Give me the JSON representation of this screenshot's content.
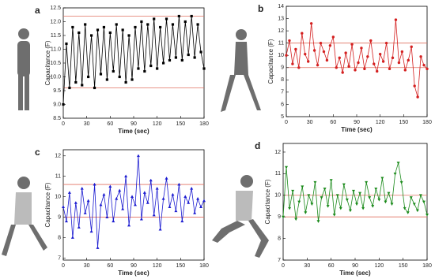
{
  "chart_data": [
    {
      "type": "line",
      "panel_label": "a",
      "ylabel": "Capacitance (F)",
      "xlabel": "Time (sec)",
      "color": "#000000",
      "marker": "square",
      "hlines": [
        12.2,
        9.6
      ],
      "hline_color": "#e07060",
      "xlim": [
        0,
        180
      ],
      "xticks": [
        0,
        30,
        60,
        90,
        120,
        150,
        180
      ],
      "ylim": [
        8.5,
        12.5
      ],
      "yticks": [
        8.5,
        {
          "value": 9,
          "label": "9.0"
        },
        9.5,
        {
          "value": 10,
          "label": "10.0"
        },
        10.5,
        {
          "value": 11,
          "label": "11.0"
        },
        11.5,
        {
          "value": 12,
          "label": "12.0"
        },
        12.5
      ],
      "x": [
        0,
        4,
        8,
        12,
        16,
        20,
        24,
        28,
        32,
        36,
        40,
        44,
        48,
        52,
        56,
        60,
        64,
        68,
        72,
        76,
        80,
        84,
        88,
        92,
        96,
        100,
        104,
        108,
        112,
        116,
        120,
        124,
        128,
        132,
        136,
        140,
        144,
        148,
        152,
        156,
        160,
        164,
        168,
        172,
        176,
        180
      ],
      "values": [
        9.0,
        11.2,
        9.6,
        11.8,
        9.8,
        11.6,
        9.7,
        11.9,
        10.0,
        11.5,
        9.6,
        11.7,
        10.1,
        11.8,
        9.9,
        11.6,
        10.2,
        11.9,
        10.0,
        11.7,
        9.8,
        11.5,
        9.9,
        11.8,
        10.3,
        12.0,
        10.2,
        11.9,
        10.4,
        12.1,
        10.3,
        11.8,
        10.5,
        12.1,
        10.6,
        11.9,
        10.7,
        12.2,
        10.6,
        12.0,
        10.8,
        12.2,
        10.7,
        11.9,
        10.9,
        10.3
      ]
    },
    {
      "type": "line",
      "panel_label": "b",
      "ylabel": "Capacitance (F)",
      "xlabel": "Time (sec)",
      "color": "#d42020",
      "marker": "circle",
      "hlines": [
        11,
        9
      ],
      "hline_color": "#e07060",
      "xlim": [
        0,
        180
      ],
      "xticks": [
        0,
        30,
        60,
        90,
        120,
        150,
        180
      ],
      "ylim": [
        5,
        14
      ],
      "yticks": [
        5,
        6,
        7,
        8,
        9,
        10,
        11,
        12,
        13,
        14
      ],
      "x": [
        0,
        4,
        8,
        12,
        16,
        20,
        24,
        28,
        32,
        36,
        40,
        44,
        48,
        52,
        56,
        60,
        64,
        68,
        72,
        76,
        80,
        84,
        88,
        92,
        96,
        100,
        104,
        108,
        112,
        116,
        120,
        124,
        128,
        132,
        136,
        140,
        144,
        148,
        152,
        156,
        160,
        164,
        168,
        172,
        176,
        180
      ],
      "values": [
        10.0,
        11.2,
        9.3,
        10.5,
        9.0,
        11.8,
        10.1,
        9.5,
        12.6,
        10.4,
        9.2,
        11.0,
        10.3,
        9.6,
        10.8,
        11.5,
        9.0,
        9.8,
        8.6,
        10.2,
        9.1,
        10.9,
        8.8,
        9.4,
        10.6,
        8.9,
        9.9,
        11.2,
        9.3,
        8.7,
        10.1,
        9.5,
        11.0,
        8.9,
        9.8,
        12.9,
        9.4,
        10.3,
        8.8,
        9.6,
        10.7,
        7.5,
        6.6,
        9.9,
        9.2,
        8.9
      ]
    },
    {
      "type": "line",
      "panel_label": "c",
      "ylabel": "Capacitance (F)",
      "xlabel": "Time (sec)",
      "color": "#1a1ad0",
      "marker": "triangle-up",
      "hlines": [
        10.6,
        9
      ],
      "hline_color": "#e07060",
      "xlim": [
        0,
        180
      ],
      "xticks": [
        0,
        30,
        60,
        90,
        120,
        150,
        180
      ],
      "ylim": [
        6.9,
        12.3
      ],
      "yticks": [
        7,
        8,
        9,
        10,
        11,
        12
      ],
      "x": [
        0,
        4,
        8,
        12,
        16,
        20,
        24,
        28,
        32,
        36,
        40,
        44,
        48,
        52,
        56,
        60,
        64,
        68,
        72,
        76,
        80,
        84,
        88,
        92,
        96,
        100,
        104,
        108,
        112,
        116,
        120,
        124,
        128,
        132,
        136,
        140,
        144,
        148,
        152,
        156,
        160,
        164,
        168,
        172,
        176,
        180
      ],
      "values": [
        9.5,
        8.8,
        10.2,
        8.0,
        9.7,
        8.5,
        10.4,
        9.2,
        9.8,
        8.3,
        10.6,
        7.5,
        9.6,
        10.1,
        9.0,
        10.5,
        8.8,
        9.9,
        10.3,
        9.4,
        11.0,
        8.6,
        10.0,
        9.6,
        12.0,
        8.9,
        10.2,
        9.7,
        10.8,
        9.1,
        10.4,
        8.4,
        9.9,
        10.9,
        9.5,
        10.1,
        9.3,
        10.6,
        8.8,
        10.0,
        9.7,
        10.4,
        9.2,
        9.9,
        9.5,
        9.8
      ]
    },
    {
      "type": "line",
      "panel_label": "d",
      "ylabel": "Capacitance (F)",
      "xlabel": "Time (sec)",
      "color": "#1a8a1a",
      "marker": "triangle-down",
      "hlines": [
        10,
        9
      ],
      "hline_color": "#e07060",
      "xlim": [
        0,
        180
      ],
      "xticks": [
        0,
        30,
        60,
        90,
        120,
        150,
        180
      ],
      "ylim": [
        7,
        12.4
      ],
      "yticks": [
        7,
        8,
        9,
        10,
        11,
        12
      ],
      "x": [
        0,
        4,
        8,
        12,
        16,
        20,
        24,
        28,
        32,
        36,
        40,
        44,
        48,
        52,
        56,
        60,
        64,
        68,
        72,
        76,
        80,
        84,
        88,
        92,
        96,
        100,
        104,
        108,
        112,
        116,
        120,
        124,
        128,
        132,
        136,
        140,
        144,
        148,
        152,
        156,
        160,
        164,
        168,
        172,
        176,
        180
      ],
      "values": [
        9.0,
        11.3,
        9.4,
        10.2,
        8.9,
        9.7,
        10.4,
        9.2,
        10.0,
        9.6,
        10.6,
        8.8,
        9.9,
        10.3,
        9.5,
        10.7,
        9.1,
        10.0,
        9.4,
        10.5,
        9.8,
        9.3,
        10.2,
        9.6,
        10.1,
        9.4,
        10.6,
        9.9,
        9.5,
        10.3,
        9.8,
        10.8,
        9.7,
        10.1,
        9.6,
        11.0,
        11.5,
        10.6,
        9.4,
        9.2,
        9.9,
        9.6,
        9.3,
        10.0,
        9.7,
        9.1
      ]
    }
  ]
}
